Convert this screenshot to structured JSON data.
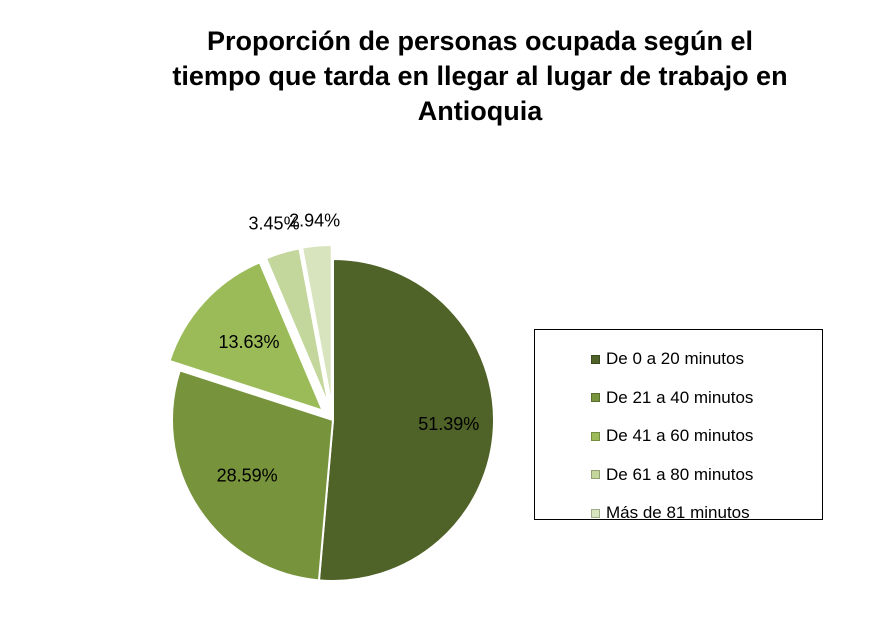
{
  "chart_data": {
    "type": "pie",
    "title_lines": [
      "Proporción de personas ocupada según el",
      "tiempo que tarda en llegar al lugar de trabajo en",
      "Antioquia"
    ],
    "categories": [
      "De 0 a 20 minutos",
      "De 21 a 40 minutos",
      "De 41 a 60 minutos",
      "De 61 a 80 minutos",
      "Más de 81 minutos"
    ],
    "values": [
      51.39,
      28.59,
      13.63,
      3.45,
      2.94
    ],
    "data_labels": [
      "51.39%",
      "28.59%",
      "13.63%",
      "3.45%",
      "2.94%"
    ],
    "colors": [
      "#4f6228",
      "#77933c",
      "#9bbb59",
      "#c3d69b",
      "#d7e4bd"
    ],
    "exploded": [
      false,
      false,
      true,
      true,
      true
    ],
    "legend_position": "right",
    "start_angle_deg": 0,
    "direction": "clockwise"
  }
}
